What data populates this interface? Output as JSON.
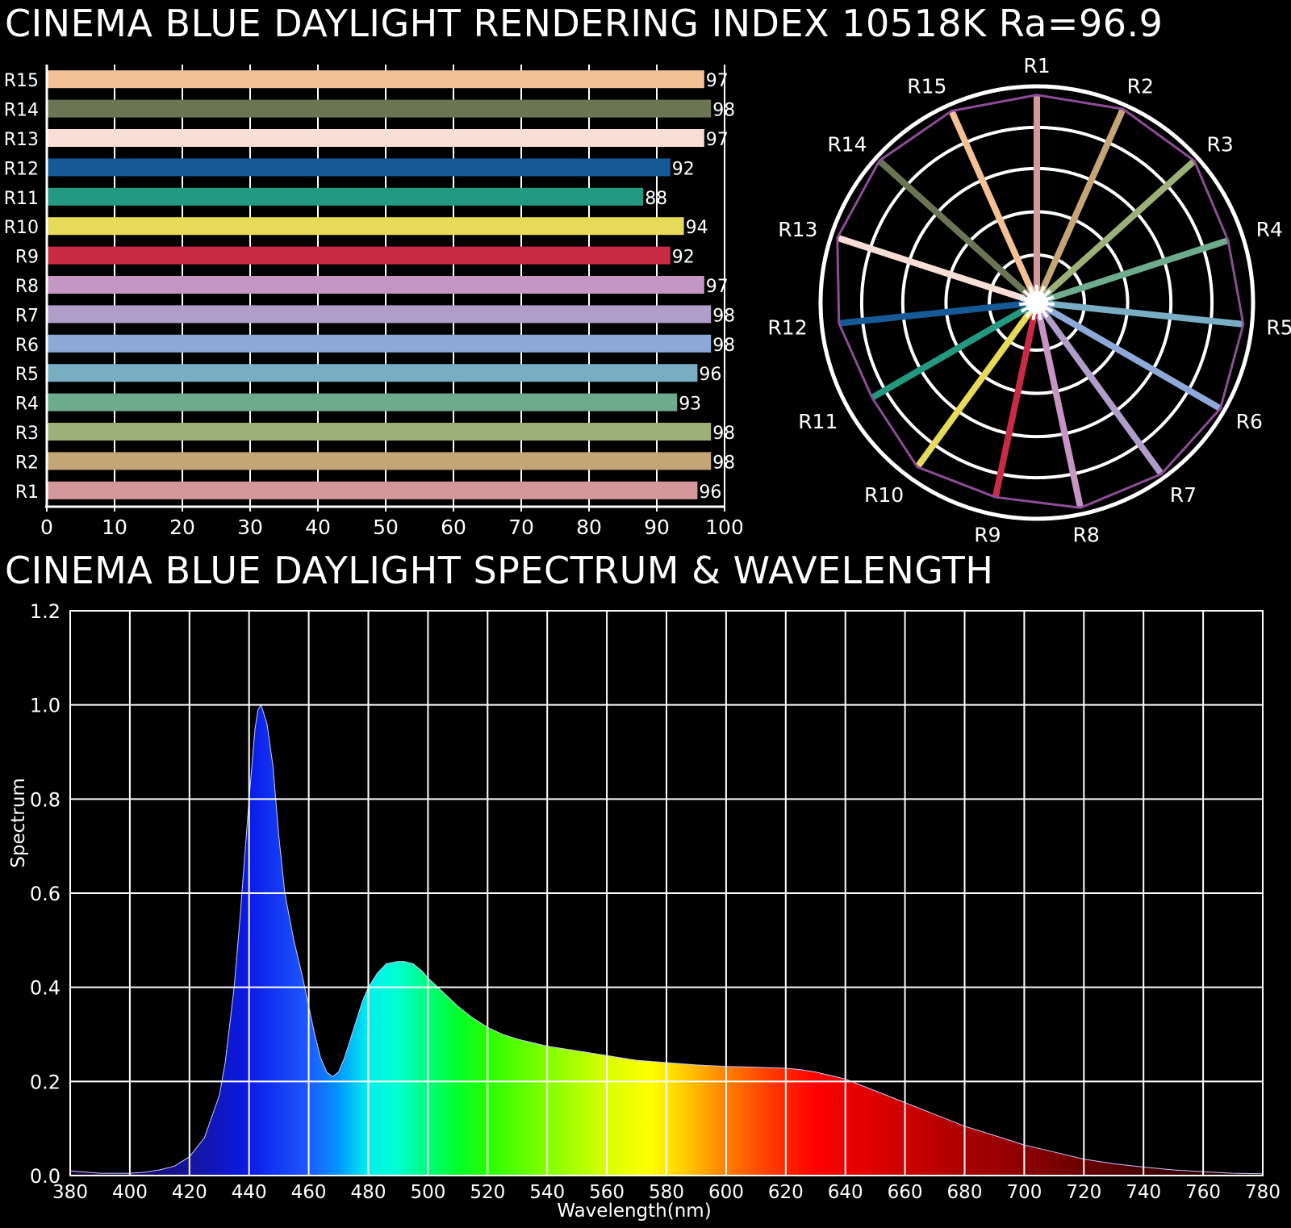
{
  "titles": {
    "rendering": "CINEMA BLUE DAYLIGHT RENDERING INDEX 10518K  Ra=96.9",
    "spectrum": "CINEMA BLUE DAYLIGHT SPECTRUM & WAVELENGTH"
  },
  "chart_data": [
    {
      "type": "bar",
      "orientation": "horizontal",
      "title": "CINEMA BLUE DAYLIGHT RENDERING INDEX 10518K  Ra=96.9",
      "categories": [
        "R1",
        "R2",
        "R3",
        "R4",
        "R5",
        "R6",
        "R7",
        "R8",
        "R9",
        "R10",
        "R11",
        "R12",
        "R13",
        "R14",
        "R15"
      ],
      "values": [
        96,
        98,
        98,
        93,
        96,
        98,
        98,
        97,
        92,
        94,
        88,
        92,
        97,
        98,
        97
      ],
      "colors": [
        "#d4989c",
        "#c4a676",
        "#9db077",
        "#6eab8d",
        "#78adc4",
        "#8ea9d8",
        "#b09dca",
        "#c596c4",
        "#c92b45",
        "#e6da58",
        "#239981",
        "#155a96",
        "#f8ded7",
        "#6b7554",
        "#f2c196"
      ],
      "xlim": [
        0,
        100
      ],
      "xticks": [
        0,
        10,
        20,
        30,
        40,
        50,
        60,
        70,
        80,
        90,
        100
      ],
      "grid": true
    },
    {
      "type": "radar",
      "categories": [
        "R1",
        "R2",
        "R3",
        "R4",
        "R5",
        "R6",
        "R7",
        "R8",
        "R9",
        "R10",
        "R11",
        "R12",
        "R13",
        "R14",
        "R15"
      ],
      "values": [
        96,
        98,
        98,
        93,
        96,
        98,
        98,
        97,
        92,
        94,
        88,
        92,
        97,
        98,
        97
      ],
      "range": [
        0,
        100
      ],
      "outline_color": "#8c4c96"
    },
    {
      "type": "area",
      "title": "CINEMA BLUE DAYLIGHT SPECTRUM & WAVELENGTH",
      "xlabel": "Wavelength(nm)",
      "ylabel": "Spectrum",
      "xlim": [
        380,
        780
      ],
      "ylim": [
        0,
        1.2
      ],
      "xticks": [
        380,
        400,
        420,
        440,
        460,
        480,
        500,
        520,
        540,
        560,
        580,
        600,
        620,
        640,
        660,
        680,
        700,
        720,
        740,
        760,
        780
      ],
      "yticks": [
        "0.0",
        "0.2",
        "0.4",
        "0.6",
        "0.8",
        "1.0",
        "1.2"
      ],
      "grid": true,
      "x": [
        380,
        390,
        400,
        405,
        410,
        415,
        420,
        425,
        430,
        432,
        435,
        437,
        440,
        442,
        443,
        444,
        446,
        448,
        450,
        452,
        455,
        458,
        460,
        462,
        464,
        466,
        468,
        470,
        472,
        475,
        478,
        480,
        483,
        486,
        490,
        492,
        495,
        498,
        500,
        505,
        510,
        515,
        520,
        525,
        530,
        540,
        550,
        560,
        570,
        580,
        590,
        600,
        610,
        620,
        625,
        630,
        640,
        650,
        660,
        670,
        680,
        690,
        700,
        710,
        720,
        730,
        740,
        750,
        760,
        770,
        780
      ],
      "y": [
        0.01,
        0.005,
        0.005,
        0.007,
        0.012,
        0.02,
        0.04,
        0.08,
        0.17,
        0.24,
        0.4,
        0.55,
        0.8,
        0.95,
        0.99,
        1.0,
        0.96,
        0.87,
        0.72,
        0.6,
        0.5,
        0.42,
        0.36,
        0.3,
        0.25,
        0.22,
        0.21,
        0.22,
        0.25,
        0.31,
        0.37,
        0.4,
        0.43,
        0.45,
        0.455,
        0.455,
        0.45,
        0.435,
        0.42,
        0.39,
        0.36,
        0.335,
        0.315,
        0.3,
        0.29,
        0.275,
        0.265,
        0.255,
        0.245,
        0.24,
        0.235,
        0.232,
        0.23,
        0.228,
        0.225,
        0.22,
        0.205,
        0.18,
        0.155,
        0.13,
        0.105,
        0.085,
        0.065,
        0.05,
        0.035,
        0.025,
        0.018,
        0.012,
        0.008,
        0.005,
        0.004
      ]
    }
  ]
}
